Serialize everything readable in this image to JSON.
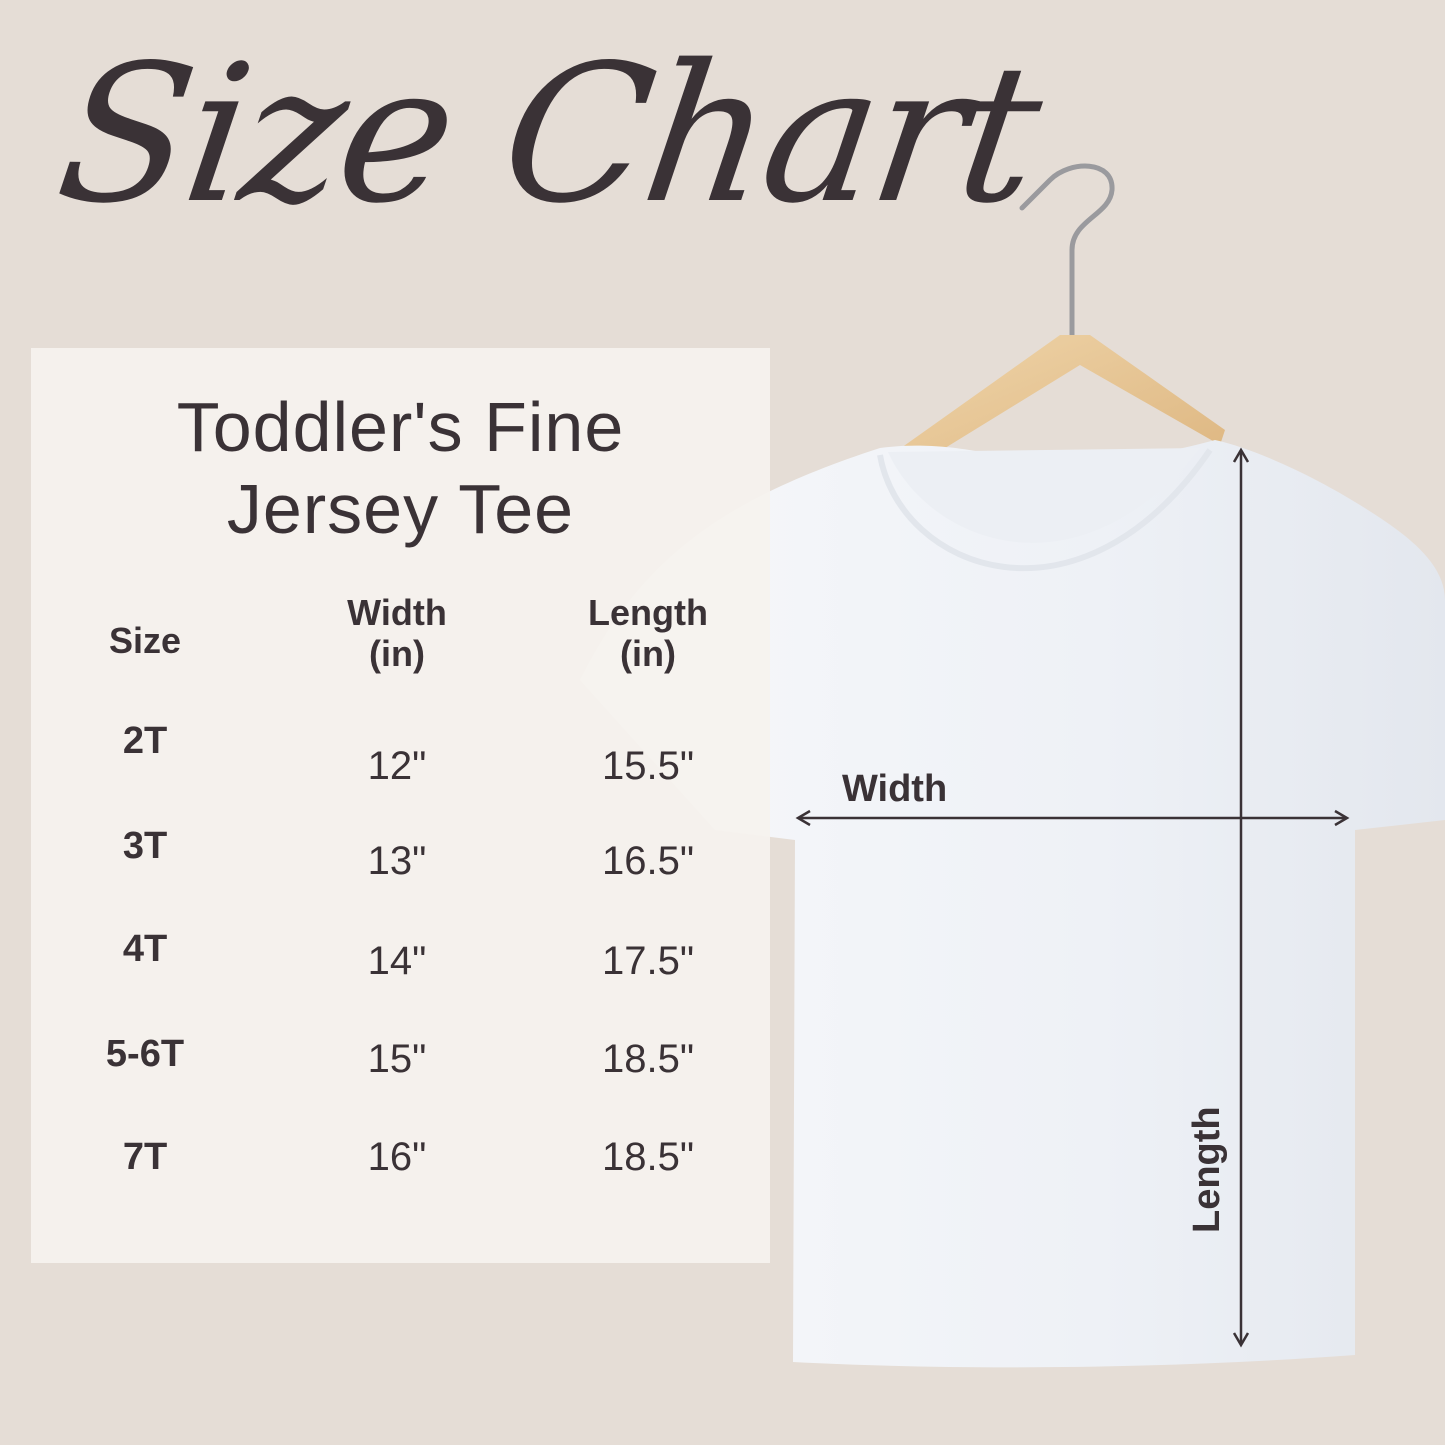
{
  "title": "Size Chart",
  "product": {
    "line1": "Toddler's Fine",
    "line2": "Jersey Tee"
  },
  "table": {
    "headers": [
      "Size",
      "Width\n(in)",
      "Length\n(in)"
    ],
    "header_lines": [
      [
        "Size"
      ],
      [
        "Width",
        "(in)"
      ],
      [
        "Length",
        "(in)"
      ]
    ],
    "rows": [
      {
        "size": "2T",
        "width": "12\"",
        "length": "15.5\""
      },
      {
        "size": "3T",
        "width": "13\"",
        "length": "16.5\""
      },
      {
        "size": "4T",
        "width": "14\"",
        "length": "17.5\""
      },
      {
        "size": "5-6T",
        "width": "15\"",
        "length": "18.5\""
      },
      {
        "size": "7T",
        "width": "16\"",
        "length": "18.5\""
      }
    ]
  },
  "diagram": {
    "width_label": "Width",
    "length_label": "Length"
  },
  "colors": {
    "background": "#e5ddd6",
    "panel": "#f4f1ed",
    "text": "#3a3236",
    "shirt": "#f3f5f9",
    "hanger": "#e8c89a"
  }
}
